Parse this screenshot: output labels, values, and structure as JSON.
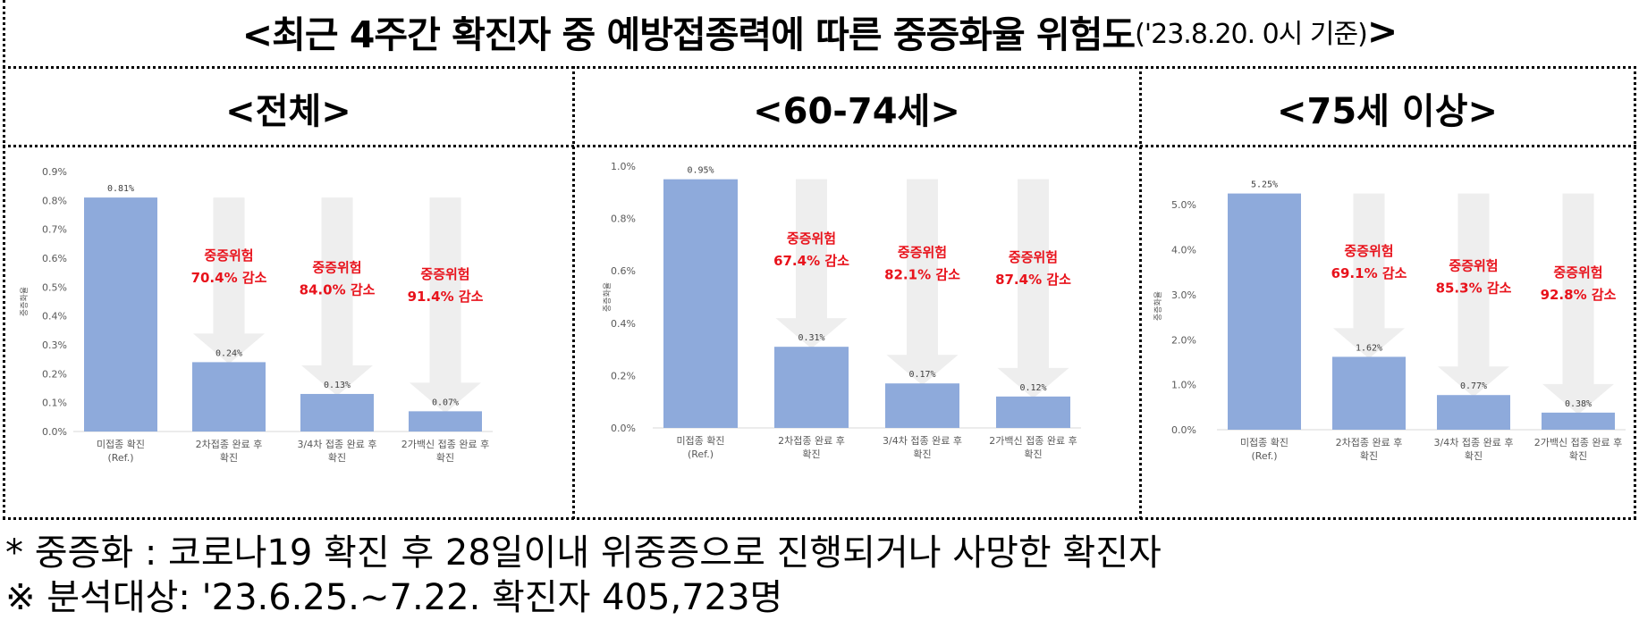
{
  "title": {
    "main": "<최근 4주간 확진자 중 예방접종력에 따른 중증화율 위험도",
    "sub": "('23.8.20. 0시 기준)",
    "close": ">"
  },
  "footnotes": [
    "* 중증화 : 코로나19 확진 후 28일이내 위중증으로 진행되거나 사망한 확진자",
    "※  분석대상: '23.6.25.~7.22. 확진자 405,723명"
  ],
  "colors": {
    "bar": "#8eaadb",
    "arrow": "#eeeeee",
    "risk_text": "#e8121b",
    "axis_text": "#595959",
    "grid": "#d9d9d9"
  },
  "chart_data": [
    {
      "type": "bar",
      "title": "<전체>",
      "ylabel": "중증화율",
      "categories": [
        [
          "미접종 확진",
          "(Ref.)"
        ],
        [
          "2차접종 완료 후",
          "확진"
        ],
        [
          "3/4차 접종 완료 후",
          "확진"
        ],
        [
          "2가백신 접종 완료 후",
          "확진"
        ]
      ],
      "values": [
        0.81,
        0.24,
        0.13,
        0.07
      ],
      "value_labels": [
        "0.81%",
        "0.24%",
        "0.13%",
        "0.07%"
      ],
      "ylim": [
        0,
        0.9
      ],
      "yticks": [
        0,
        0.1,
        0.2,
        0.3,
        0.4,
        0.5,
        0.6,
        0.7,
        0.8,
        0.9
      ],
      "ytick_labels": [
        "0.0%",
        "0.1%",
        "0.2%",
        "0.3%",
        "0.4%",
        "0.5%",
        "0.6%",
        "0.7%",
        "0.8%",
        "0.9%"
      ],
      "annotations": [
        {
          "category_index": 1,
          "lines": [
            "중증위험",
            "70.4% 감소"
          ]
        },
        {
          "category_index": 2,
          "lines": [
            "중증위험",
            "84.0% 감소"
          ]
        },
        {
          "category_index": 3,
          "lines": [
            "중증위험",
            "91.4% 감소"
          ]
        }
      ],
      "grid": false
    },
    {
      "type": "bar",
      "title": "<60-74세>",
      "ylabel": "중증화율",
      "categories": [
        [
          "미접종 확진",
          "(Ref.)"
        ],
        [
          "2차접종 완료 후",
          "확진"
        ],
        [
          "3/4차 접종 완료 후",
          "확진"
        ],
        [
          "2가백신 접종 완료 후",
          "확진"
        ]
      ],
      "values": [
        0.95,
        0.31,
        0.17,
        0.12
      ],
      "value_labels": [
        "0.95%",
        "0.31%",
        "0.17%",
        "0.12%"
      ],
      "ylim": [
        0,
        1.0
      ],
      "yticks": [
        0,
        0.2,
        0.4,
        0.6,
        0.8,
        1.0
      ],
      "ytick_labels": [
        "0.0%",
        "0.2%",
        "0.4%",
        "0.6%",
        "0.8%",
        "1.0%"
      ],
      "annotations": [
        {
          "category_index": 1,
          "lines": [
            "중증위험",
            "67.4% 감소"
          ]
        },
        {
          "category_index": 2,
          "lines": [
            "중증위험",
            "82.1% 감소"
          ]
        },
        {
          "category_index": 3,
          "lines": [
            "중증위험",
            "87.4% 감소"
          ]
        }
      ],
      "grid": false
    },
    {
      "type": "bar",
      "title": "<75세 이상>",
      "ylabel": "중증화율",
      "categories": [
        [
          "미접종 확진",
          "(Ref.)"
        ],
        [
          "2차접종 완료 후",
          "확진"
        ],
        [
          "3/4차 접종 완료 후",
          "확진"
        ],
        [
          "2가백신 접종 완료 후",
          "확진"
        ]
      ],
      "values": [
        5.25,
        1.62,
        0.77,
        0.38
      ],
      "value_labels": [
        "5.25%",
        "1.62%",
        "0.77%",
        "0.38%"
      ],
      "ylim": [
        0,
        5.5
      ],
      "yticks": [
        0,
        1,
        2,
        3,
        4,
        5
      ],
      "ytick_labels": [
        "0.0%",
        "1.0%",
        "2.0%",
        "3.0%",
        "4.0%",
        "5.0%"
      ],
      "annotations": [
        {
          "category_index": 1,
          "lines": [
            "중증위험",
            "69.1% 감소"
          ]
        },
        {
          "category_index": 2,
          "lines": [
            "중증위험",
            "85.3% 감소"
          ]
        },
        {
          "category_index": 3,
          "lines": [
            "중증위험",
            "92.8% 감소"
          ]
        }
      ],
      "grid": false
    }
  ]
}
